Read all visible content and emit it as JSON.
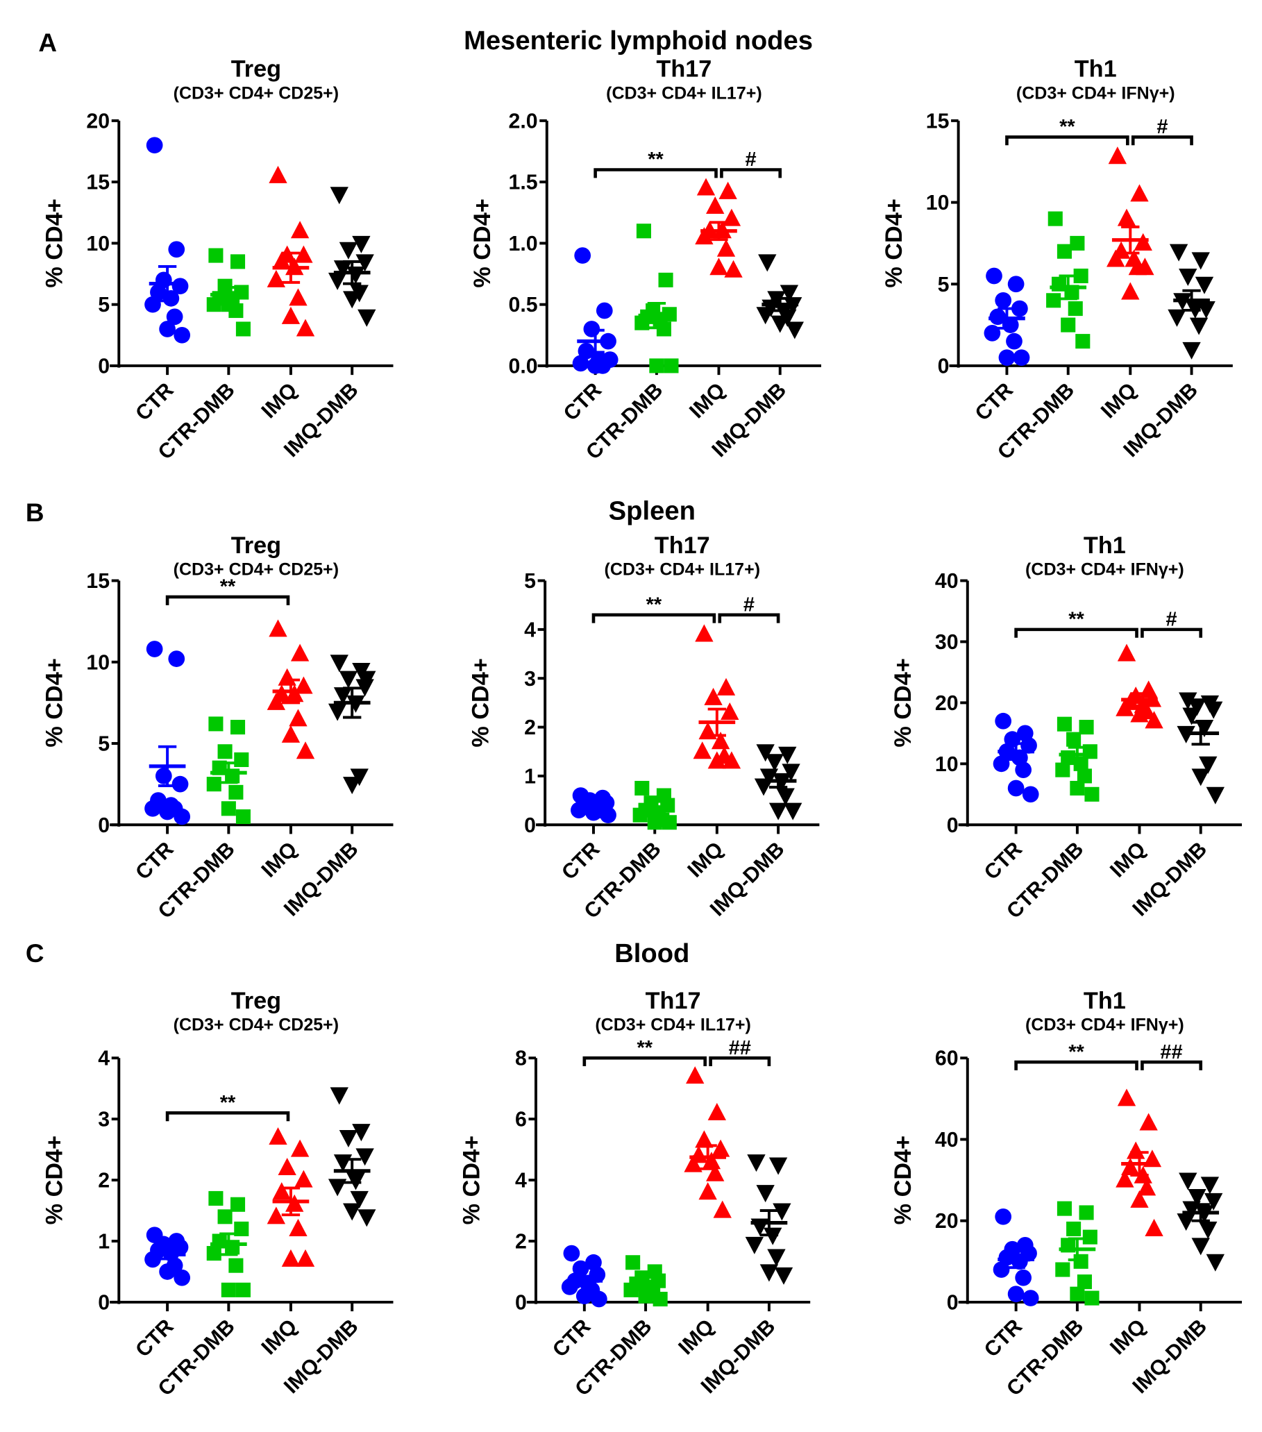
{
  "panel_labels": [
    "A",
    "B",
    "C"
  ],
  "section_titles": [
    "Mesenteric lymphoid nodes",
    "Spleen",
    "Blood"
  ],
  "colors": {
    "CTR": "#0000ff",
    "CTR-DMB": "#00c800",
    "IMQ": "#ff0000",
    "IMQ-DMB": "#000000"
  },
  "chart_data": [
    {
      "type": "scatter",
      "row": 0,
      "title": "Treg",
      "subtitle": "(CD3+ CD4+ CD25+)",
      "ylabel": "% CD4+",
      "ylim": [
        0,
        20
      ],
      "ticks": [
        0,
        5,
        10,
        15,
        20
      ],
      "categories": [
        "CTR",
        "CTR-DMB",
        "IMQ",
        "IMQ-DMB"
      ],
      "series": [
        {
          "name": "CTR",
          "values": [
            18,
            9.5,
            7,
            6.5,
            6,
            5.5,
            5,
            4,
            3,
            2.5
          ],
          "mean": 6.7,
          "sem": 1.4
        },
        {
          "name": "CTR-DMB",
          "values": [
            9,
            8.5,
            6.5,
            6,
            5.5,
            5.5,
            5,
            4.5,
            5,
            3
          ],
          "mean": 5.8,
          "sem": 0.6
        },
        {
          "name": "IMQ",
          "values": [
            15.5,
            11,
            9,
            9,
            8.5,
            8,
            7,
            5.5,
            4,
            3
          ],
          "mean": 8.0,
          "sem": 1.2
        },
        {
          "name": "IMQ-DMB",
          "values": [
            14,
            10,
            9.5,
            8.5,
            8,
            7.5,
            7,
            6,
            5.5,
            4
          ],
          "mean": 7.6,
          "sem": 0.9
        }
      ],
      "brackets": []
    },
    {
      "type": "scatter",
      "row": 0,
      "title": "Th17",
      "subtitle": "(CD3+ CD4+ IL17+)",
      "ylabel": "% CD4+",
      "ylim": [
        0,
        2
      ],
      "ticks": [
        0.0,
        0.5,
        1.0,
        1.5,
        2.0
      ],
      "tick_labels": [
        "0.0",
        "0.5",
        "1.0",
        "1.5",
        "2.0"
      ],
      "categories": [
        "CTR",
        "CTR-DMB",
        "IMQ",
        "IMQ-DMB"
      ],
      "series": [
        {
          "name": "CTR",
          "values": [
            0.9,
            0.45,
            0.3,
            0.2,
            0.12,
            0.05,
            0.02,
            0,
            0,
            0.05
          ],
          "mean": 0.2,
          "sem": 0.09
        },
        {
          "name": "CTR-DMB",
          "values": [
            1.1,
            0.7,
            0.45,
            0.42,
            0.4,
            0.38,
            0.35,
            0.3,
            0,
            0
          ],
          "mean": 0.41,
          "sem": 0.1
        },
        {
          "name": "IMQ",
          "values": [
            1.45,
            1.42,
            1.3,
            1.2,
            1.1,
            1.1,
            1.05,
            0.95,
            0.8,
            0.78
          ],
          "mean": 1.1,
          "sem": 0.07
        },
        {
          "name": "IMQ-DMB",
          "values": [
            0.85,
            0.6,
            0.55,
            0.5,
            0.48,
            0.45,
            0.42,
            0.4,
            0.35,
            0.3
          ],
          "mean": 0.5,
          "sem": 0.05
        }
      ],
      "brackets": [
        {
          "from": 0,
          "to": 2,
          "y": 1.6,
          "label": "**"
        },
        {
          "from": 2,
          "to": 3,
          "y": 1.6,
          "label": "#"
        }
      ]
    },
    {
      "type": "scatter",
      "row": 0,
      "title": "Th1",
      "subtitle": "(CD3+ CD4+ IFNγ+)",
      "ylabel": "% CD4+",
      "ylim": [
        0,
        15
      ],
      "ticks": [
        0,
        5,
        10,
        15
      ],
      "categories": [
        "CTR",
        "CTR-DMB",
        "IMQ",
        "IMQ-DMB"
      ],
      "series": [
        {
          "name": "CTR",
          "values": [
            5.5,
            5,
            4,
            3.5,
            3,
            2.5,
            2,
            1.5,
            0.5,
            0.5
          ],
          "mean": 2.9,
          "sem": 0.6
        },
        {
          "name": "CTR-DMB",
          "values": [
            9,
            7.5,
            7,
            5.5,
            5,
            4.5,
            4,
            3.5,
            2.5,
            1.5
          ],
          "mean": 4.8,
          "sem": 0.7
        },
        {
          "name": "IMQ",
          "values": [
            12.8,
            10.5,
            9,
            7.5,
            7,
            6.5,
            6.5,
            6,
            4.5,
            6
          ],
          "mean": 7.7,
          "sem": 0.8
        },
        {
          "name": "IMQ-DMB",
          "values": [
            7,
            6.5,
            5.5,
            5,
            4,
            3.5,
            3,
            2.5,
            1,
            3.5
          ],
          "mean": 4.0,
          "sem": 0.6
        }
      ],
      "brackets": [
        {
          "from": 0,
          "to": 2,
          "y": 14,
          "label": "**"
        },
        {
          "from": 2,
          "to": 3,
          "y": 14,
          "label": "#"
        }
      ]
    },
    {
      "type": "scatter",
      "row": 1,
      "title": "Treg",
      "subtitle": "(CD3+ CD4+ CD25+)",
      "ylabel": "% CD4+",
      "ylim": [
        0,
        15
      ],
      "ticks": [
        0,
        5,
        10,
        15
      ],
      "categories": [
        "CTR",
        "CTR-DMB",
        "IMQ",
        "IMQ-DMB"
      ],
      "series": [
        {
          "name": "CTR",
          "values": [
            10.8,
            10.2,
            3,
            2.5,
            1.5,
            1.2,
            1,
            1,
            0.8,
            0.5
          ],
          "mean": 3.6,
          "sem": 1.2
        },
        {
          "name": "CTR-DMB",
          "values": [
            6.2,
            6,
            4.5,
            4,
            3.5,
            3,
            2.5,
            2,
            1,
            0.5
          ],
          "mean": 3.2,
          "sem": 0.6
        },
        {
          "name": "IMQ",
          "values": [
            12,
            10.5,
            9,
            8.5,
            8,
            8,
            7.5,
            6.5,
            5.5,
            4.5
          ],
          "mean": 8.2,
          "sem": 0.7
        },
        {
          "name": "IMQ-DMB",
          "values": [
            10,
            9.5,
            9,
            8.5,
            8,
            7.5,
            7,
            3,
            2.5,
            9
          ],
          "mean": 7.5,
          "sem": 0.9
        }
      ],
      "brackets": [
        {
          "from": 0,
          "to": 2,
          "y": 14,
          "label": "**"
        }
      ]
    },
    {
      "type": "scatter",
      "row": 1,
      "title": "Th17",
      "subtitle": "(CD3+ CD4+ IL17+)",
      "ylabel": "% CD4+",
      "ylim": [
        0,
        5
      ],
      "ticks": [
        0,
        1,
        2,
        3,
        4,
        5
      ],
      "categories": [
        "CTR",
        "CTR-DMB",
        "IMQ",
        "IMQ-DMB"
      ],
      "series": [
        {
          "name": "CTR",
          "values": [
            0.6,
            0.55,
            0.5,
            0.45,
            0.4,
            0.35,
            0.3,
            0.3,
            0.25,
            0.2
          ],
          "mean": 0.4,
          "sem": 0.04
        },
        {
          "name": "CTR-DMB",
          "values": [
            0.75,
            0.6,
            0.45,
            0.4,
            0.3,
            0.25,
            0.2,
            0.1,
            0.05,
            0.05
          ],
          "mean": 0.3,
          "sem": 0.07
        },
        {
          "name": "IMQ",
          "values": [
            3.9,
            2.8,
            2.6,
            2.3,
            1.9,
            1.7,
            1.5,
            1.4,
            1.3,
            1.3
          ],
          "mean": 2.1,
          "sem": 0.27
        },
        {
          "name": "IMQ-DMB",
          "values": [
            1.5,
            1.45,
            1.3,
            1.1,
            1,
            0.9,
            0.8,
            0.6,
            0.3,
            0.3
          ],
          "mean": 0.9,
          "sem": 0.13
        }
      ],
      "brackets": [
        {
          "from": 0,
          "to": 2,
          "y": 4.3,
          "label": "**"
        },
        {
          "from": 2,
          "to": 3,
          "y": 4.3,
          "label": "#"
        }
      ]
    },
    {
      "type": "scatter",
      "row": 1,
      "title": "Th1",
      "subtitle": "(CD3+ CD4+ IFNγ+)",
      "ylabel": "% CD4+",
      "ylim": [
        0,
        40
      ],
      "ticks": [
        0,
        10,
        20,
        30,
        40
      ],
      "categories": [
        "CTR",
        "CTR-DMB",
        "IMQ",
        "IMQ-DMB"
      ],
      "series": [
        {
          "name": "CTR",
          "values": [
            17,
            15,
            14,
            13,
            12,
            11,
            10,
            9,
            6,
            5
          ],
          "mean": 12,
          "sem": 1.3
        },
        {
          "name": "CTR-DMB",
          "values": [
            16.5,
            16,
            14,
            12,
            11,
            10,
            9,
            8,
            6,
            5
          ],
          "mean": 11.5,
          "sem": 1.2
        },
        {
          "name": "IMQ",
          "values": [
            28,
            22,
            21,
            20.5,
            20,
            19.5,
            19,
            18.5,
            18,
            17
          ],
          "mean": 20.5,
          "sem": 1.0
        },
        {
          "name": "IMQ-DMB",
          "values": [
            20.5,
            20,
            19.5,
            19,
            18,
            16,
            15,
            10,
            8,
            5
          ],
          "mean": 15,
          "sem": 1.8
        }
      ],
      "brackets": [
        {
          "from": 0,
          "to": 2,
          "y": 32,
          "label": "**"
        },
        {
          "from": 2,
          "to": 3,
          "y": 32,
          "label": "#"
        }
      ]
    },
    {
      "type": "scatter",
      "row": 2,
      "title": "Treg",
      "subtitle": "(CD3+ CD4+ CD25+)",
      "ylabel": "% CD4+",
      "ylim": [
        0,
        4
      ],
      "ticks": [
        0,
        1,
        2,
        3,
        4
      ],
      "categories": [
        "CTR",
        "CTR-DMB",
        "IMQ",
        "IMQ-DMB"
      ],
      "series": [
        {
          "name": "CTR",
          "values": [
            1.1,
            1.0,
            0.95,
            0.9,
            0.85,
            0.8,
            0.7,
            0.6,
            0.5,
            0.4
          ],
          "mean": 0.78,
          "sem": 0.07
        },
        {
          "name": "CTR-DMB",
          "values": [
            1.7,
            1.6,
            1.4,
            1.2,
            1,
            0.9,
            0.8,
            0.6,
            0.2,
            0.2
          ],
          "mean": 0.95,
          "sem": 0.17
        },
        {
          "name": "IMQ",
          "values": [
            2.7,
            2.5,
            2.2,
            2.0,
            1.8,
            1.6,
            1.4,
            1.2,
            0.7,
            0.7
          ],
          "mean": 1.65,
          "sem": 0.22
        },
        {
          "name": "IMQ-DMB",
          "values": [
            3.4,
            2.8,
            2.7,
            2.4,
            2.3,
            2.0,
            1.9,
            1.7,
            1.5,
            1.4
          ],
          "mean": 2.15,
          "sem": 0.19
        }
      ],
      "brackets": [
        {
          "from": 0,
          "to": 2,
          "y": 3.1,
          "label": "**"
        }
      ]
    },
    {
      "type": "scatter",
      "row": 2,
      "title": "Th17",
      "subtitle": "(CD3+ CD4+ IL17+)",
      "ylabel": "% CD4+",
      "ylim": [
        0,
        8
      ],
      "ticks": [
        0,
        2,
        4,
        6,
        8
      ],
      "categories": [
        "CTR",
        "CTR-DMB",
        "IMQ",
        "IMQ-DMB"
      ],
      "series": [
        {
          "name": "CTR",
          "values": [
            1.6,
            1.3,
            1.1,
            0.9,
            0.7,
            0.6,
            0.5,
            0.4,
            0.2,
            0.1
          ],
          "mean": 0.7,
          "sem": 0.15
        },
        {
          "name": "CTR-DMB",
          "values": [
            1.3,
            1.0,
            0.8,
            0.7,
            0.6,
            0.5,
            0.4,
            0.3,
            0.2,
            0.1
          ],
          "mean": 0.55,
          "sem": 0.11
        },
        {
          "name": "IMQ",
          "values": [
            7.4,
            6.2,
            5.3,
            5,
            4.8,
            4.6,
            4.5,
            4.2,
            3.6,
            3
          ],
          "mean": 4.75,
          "sem": 0.38
        },
        {
          "name": "IMQ-DMB",
          "values": [
            4.6,
            4.5,
            3.6,
            3,
            2.5,
            2.2,
            1.9,
            1.5,
            1,
            0.9
          ],
          "mean": 2.6,
          "sem": 0.4
        }
      ],
      "brackets": [
        {
          "from": 0,
          "to": 2,
          "y": 8,
          "label": "**"
        },
        {
          "from": 2,
          "to": 3,
          "y": 8,
          "label": "##"
        }
      ]
    },
    {
      "type": "scatter",
      "row": 2,
      "title": "Th1",
      "subtitle": "(CD3+ CD4+ IFNγ+)",
      "ylabel": "% CD4+",
      "ylim": [
        0,
        60
      ],
      "ticks": [
        0,
        20,
        40,
        60
      ],
      "categories": [
        "CTR",
        "CTR-DMB",
        "IMQ",
        "IMQ-DMB"
      ],
      "series": [
        {
          "name": "CTR",
          "values": [
            21,
            14,
            13,
            12,
            11,
            10,
            8,
            6,
            2,
            1
          ],
          "mean": 10.5,
          "sem": 2.0
        },
        {
          "name": "CTR-DMB",
          "values": [
            23,
            22,
            18,
            16,
            14,
            10,
            8,
            5,
            2,
            1
          ],
          "mean": 13,
          "sem": 2.6
        },
        {
          "name": "IMQ",
          "values": [
            50,
            44,
            37,
            35,
            33,
            31,
            30,
            28,
            25,
            18
          ],
          "mean": 34,
          "sem": 2.8
        },
        {
          "name": "IMQ-DMB",
          "values": [
            30,
            29,
            26,
            25,
            23,
            22,
            20,
            18,
            14,
            10
          ],
          "mean": 22,
          "sem": 2.0
        }
      ],
      "brackets": [
        {
          "from": 0,
          "to": 2,
          "y": 59,
          "label": "**"
        },
        {
          "from": 2,
          "to": 3,
          "y": 59,
          "label": "##"
        }
      ]
    }
  ]
}
